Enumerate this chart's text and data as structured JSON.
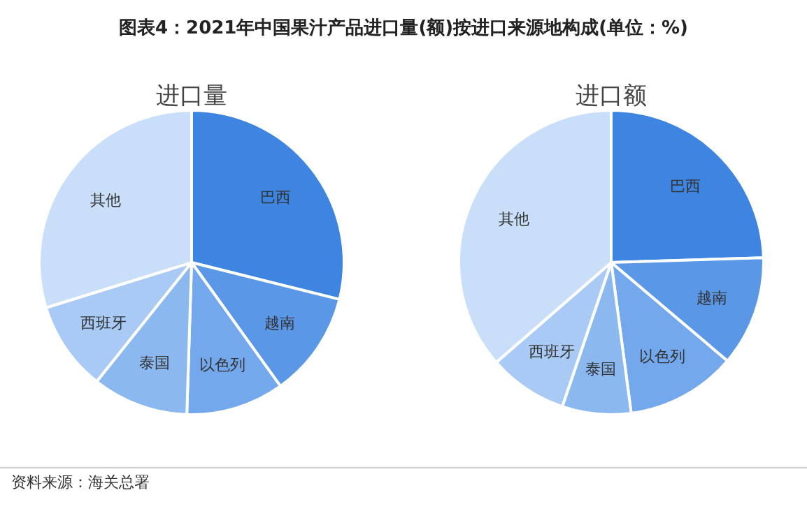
{
  "chart_data": [
    {
      "type": "pie",
      "title": "进口量",
      "annotations": [
        "图表4：2021年中国果汁产品进口量(额)按进口来源地构成(单位：%)",
        "资料来源：海关总署"
      ],
      "categories": [
        "巴西",
        "越南",
        "以色列",
        "泰国",
        "西班牙",
        "其他"
      ],
      "values": [
        28.9,
        11.2,
        10.4,
        10.2,
        9.5,
        29.8
      ],
      "colors": [
        "#3d85e0",
        "#5a97e6",
        "#74a8ec",
        "#8cb8f0",
        "#a8caf4",
        "#c8def9"
      ]
    },
    {
      "type": "pie",
      "title": "进口额",
      "categories": [
        "巴西",
        "越南",
        "以色列",
        "泰国",
        "西班牙",
        "其他"
      ],
      "values": [
        24.5,
        11.7,
        11.7,
        7.3,
        8.4,
        36.4
      ],
      "colors": [
        "#3d85e0",
        "#5a97e6",
        "#74a8ec",
        "#8cb8f0",
        "#a8caf4",
        "#c8def9"
      ]
    }
  ]
}
